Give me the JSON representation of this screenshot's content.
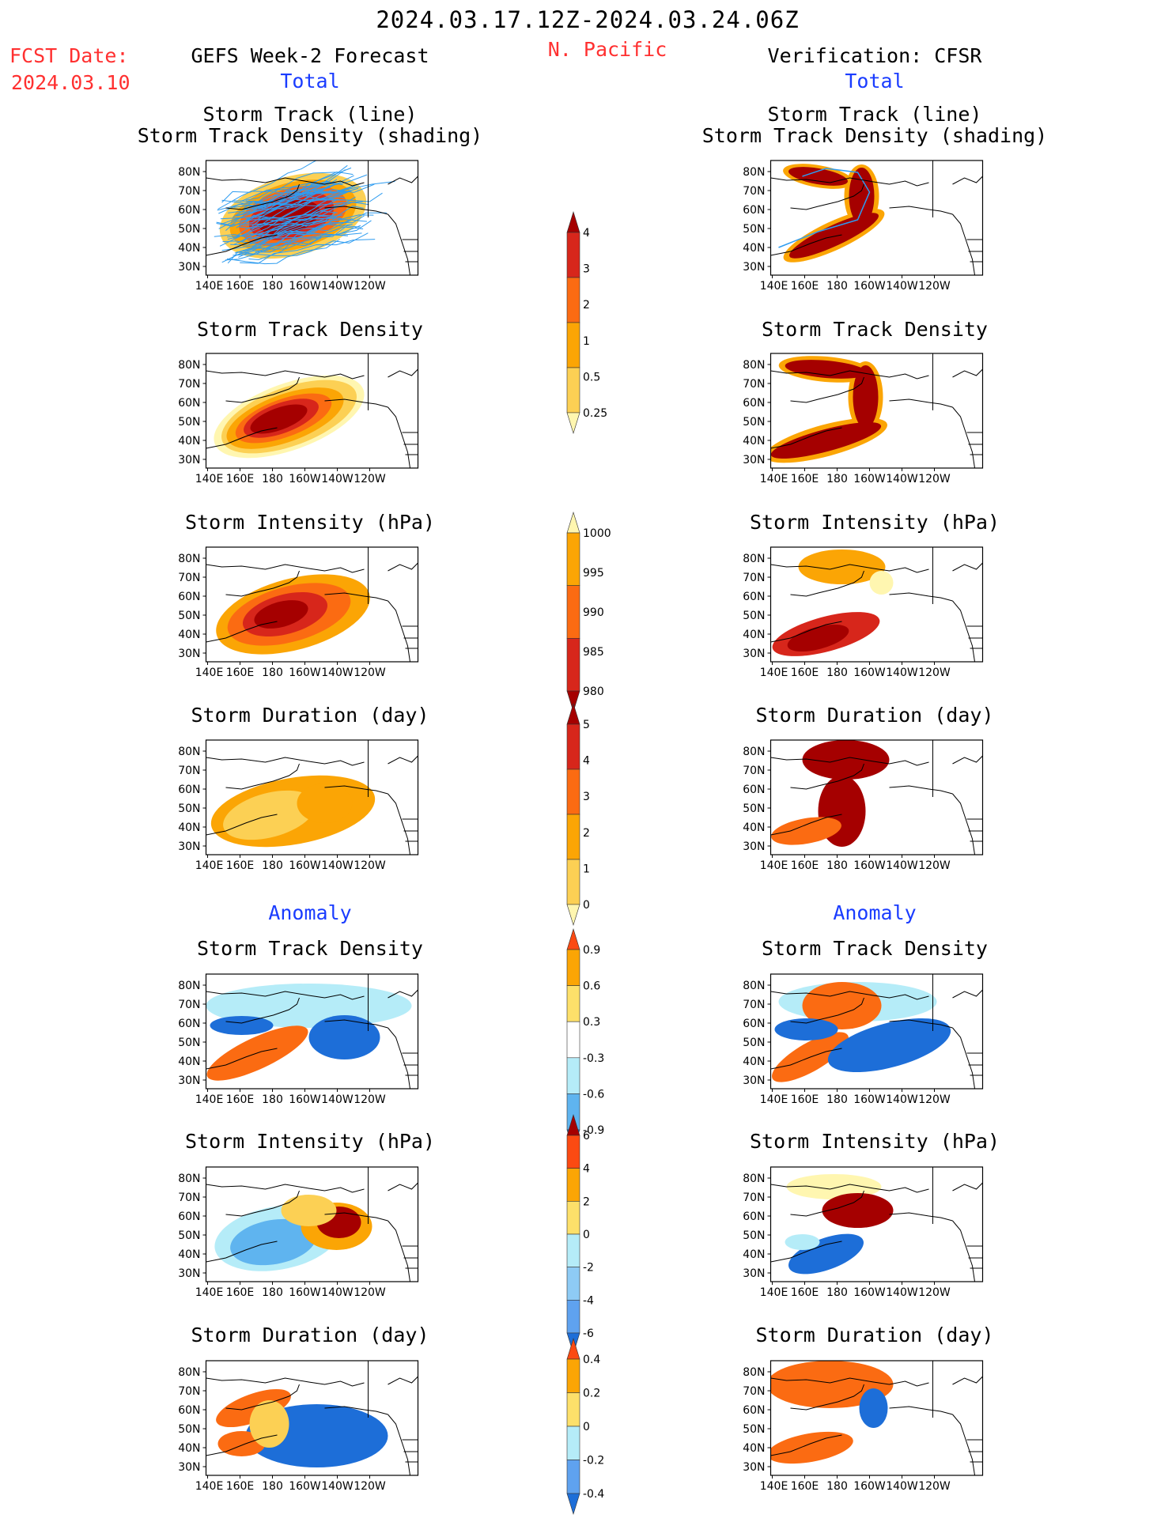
{
  "header": {
    "date_range": "2024.03.17.12Z-2024.03.24.06Z",
    "fcst_label": "FCST Date:",
    "fcst_date": "2024.03.10",
    "left_title": "GEFS Week-2 Forecast",
    "region": "N. Pacific",
    "right_title": "Verification: CFSR"
  },
  "sections": {
    "total": "Total",
    "anomaly": "Anomaly"
  },
  "panel_titles": {
    "track_line": "Storm Track (line)",
    "track_shading": "Storm Track Density (shading)",
    "density": "Storm Track Density",
    "intensity": "Storm Intensity (hPa)",
    "duration": "Storm Duration (day)"
  },
  "axes": {
    "lat_labels": [
      "80N",
      "70N",
      "60N",
      "50N",
      "40N",
      "30N"
    ],
    "lon_labels": [
      "140E",
      "160E",
      "180",
      "160W",
      "140W",
      "120W"
    ]
  },
  "colorbars": [
    {
      "id": "density-total",
      "labels": [
        "4",
        "3",
        "2",
        "1",
        "0.5",
        "0.25"
      ],
      "colors": [
        "#a50000",
        "#d7261b",
        "#fb6b12",
        "#fba505",
        "#fcd054",
        "#fff6b0"
      ]
    },
    {
      "id": "intensity-total",
      "labels": [
        "1000",
        "995",
        "990",
        "985",
        "980"
      ],
      "colors": [
        "#fff6b0",
        "#fba505",
        "#fb6b12",
        "#d7261b",
        "#a50000"
      ]
    },
    {
      "id": "duration-total",
      "labels": [
        "5",
        "4",
        "3",
        "2",
        "1",
        "0"
      ],
      "colors": [
        "#a50000",
        "#d7261b",
        "#fb6b12",
        "#fba505",
        "#fcd054",
        "#fff6b0"
      ]
    },
    {
      "id": "density-anom",
      "labels": [
        "0.9",
        "0.6",
        "0.3",
        "-0.3",
        "-0.6",
        "-0.9"
      ],
      "colors": [
        "#fb4a12",
        "#fba505",
        "#fde06a",
        "#ffffff",
        "#b5ecf8",
        "#5fb4ef",
        "#1d6ed8"
      ]
    },
    {
      "id": "intensity-anom",
      "labels": [
        "6",
        "4",
        "2",
        "0",
        "-2",
        "-4",
        "-6"
      ],
      "colors": [
        "#a50000",
        "#fb4a12",
        "#fba505",
        "#fde06a",
        "#b5ecf8",
        "#8ecbf5",
        "#5fa2ef",
        "#1d6ed8"
      ]
    },
    {
      "id": "duration-anom",
      "labels": [
        "0.4",
        "0.2",
        "0",
        "-0.2",
        "-0.4"
      ],
      "colors": [
        "#fb4a12",
        "#fba505",
        "#fde06a",
        "#b5ecf8",
        "#5fa2ef",
        "#1d6ed8"
      ]
    }
  ],
  "palette": {
    "dark_red": "#a50000",
    "red": "#d7261b",
    "orange_red": "#fb6b12",
    "orange": "#fba505",
    "yellow": "#fcd054",
    "light_yellow": "#fff6b0",
    "light_blue": "#b5ecf8",
    "mid_blue": "#5fb4ef",
    "blue": "#1d6ed8",
    "track_line": "#2e9cf0",
    "title_red": "#ff3030",
    "title_blue": "#1a3cff"
  }
}
